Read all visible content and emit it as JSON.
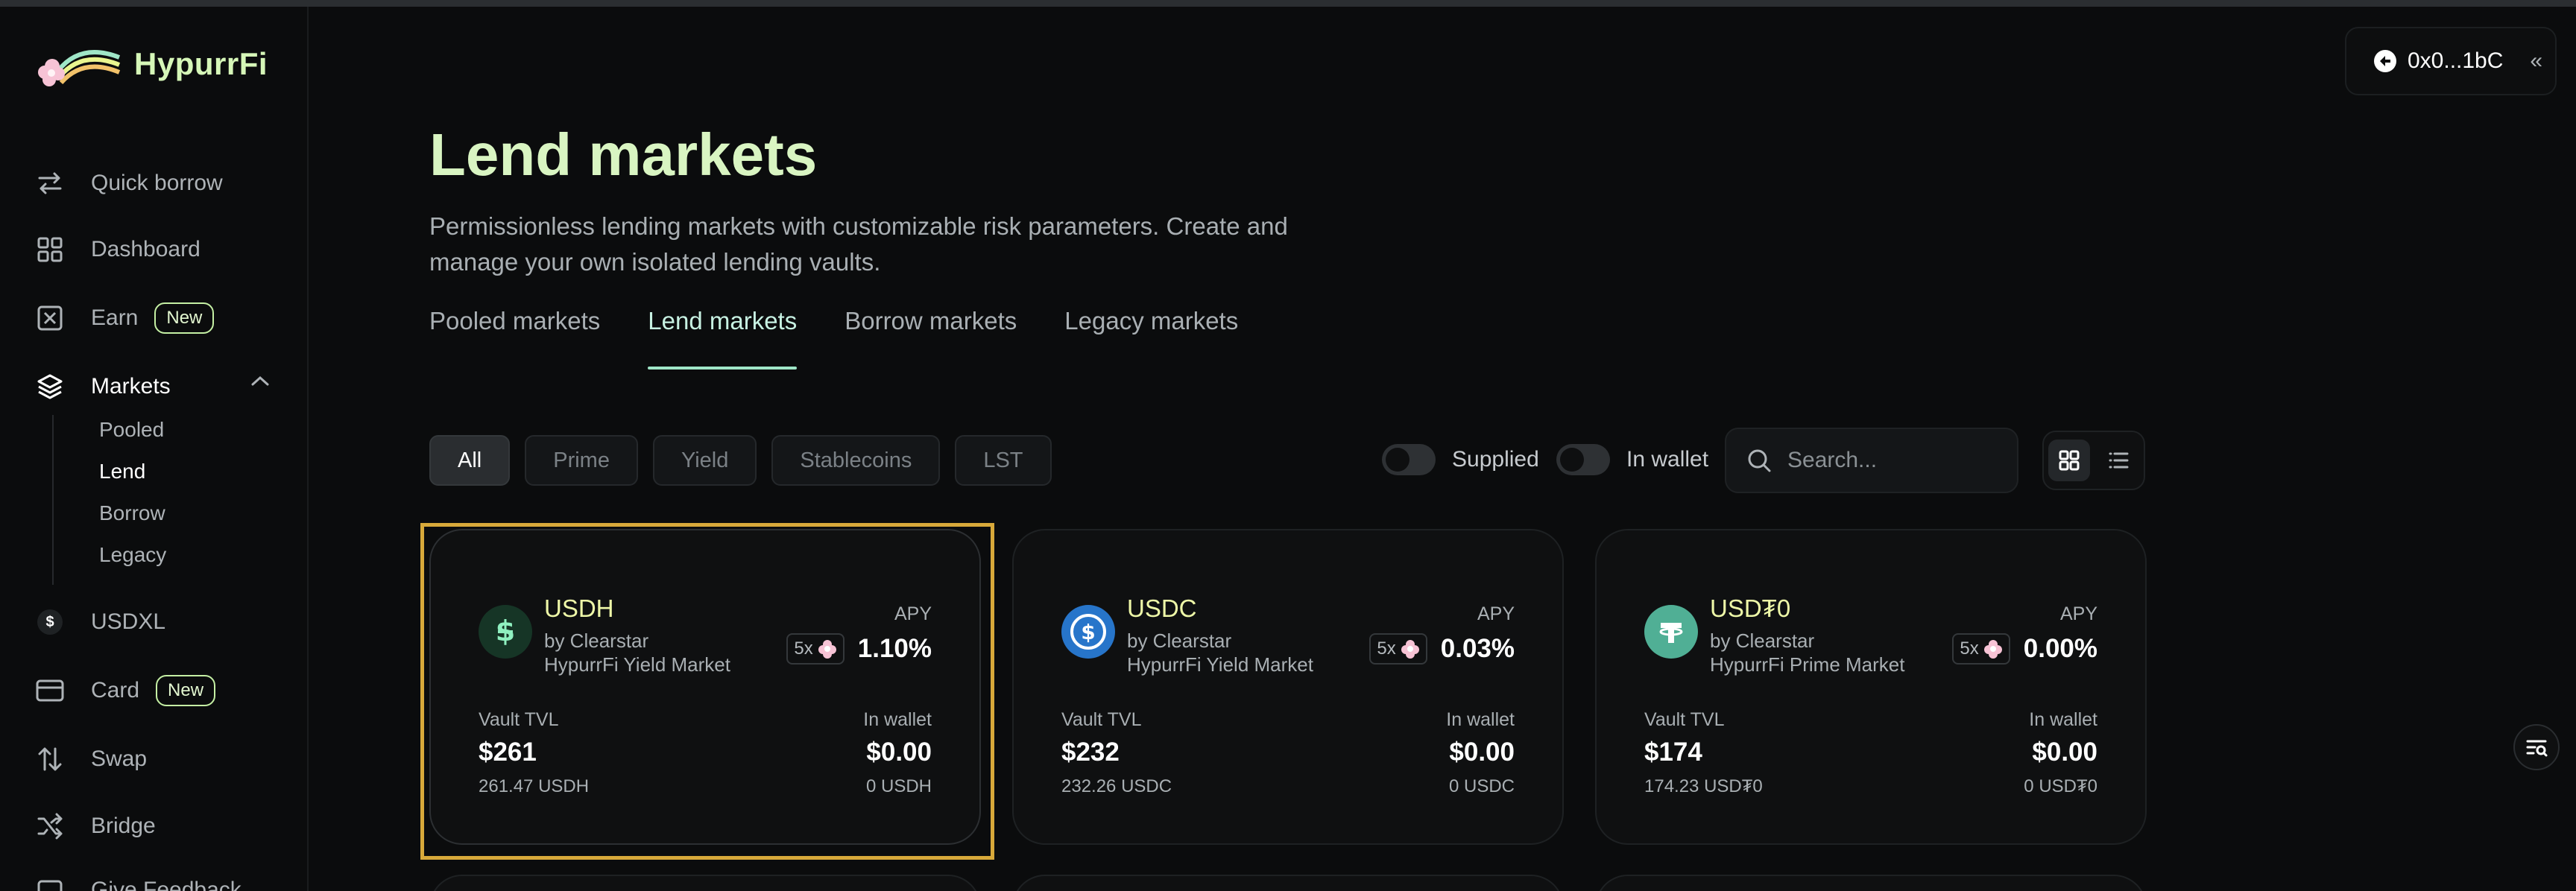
{
  "app": {
    "name": "HypurrFi"
  },
  "sidebar": {
    "items": [
      {
        "label": "Quick borrow",
        "icon": "arrows-swap-icon"
      },
      {
        "label": "Dashboard",
        "icon": "grid-icon"
      },
      {
        "label": "Earn",
        "icon": "earn-box-icon",
        "badge": "New"
      },
      {
        "label": "Markets",
        "icon": "layers-icon"
      },
      {
        "label": "USDXL",
        "icon": "dollar-coin-icon",
        "glyph": "$"
      },
      {
        "label": "Card",
        "icon": "credit-card-icon",
        "badge": "New"
      },
      {
        "label": "Swap",
        "icon": "swap-arrows-icon"
      },
      {
        "label": "Bridge",
        "icon": "bridge-shuffle-icon"
      },
      {
        "label": "Give Feedback",
        "icon": "feedback-icon"
      }
    ],
    "markets_sub": [
      "Pooled",
      "Lend",
      "Borrow",
      "Legacy"
    ]
  },
  "wallet": {
    "address": "0x0...1bC"
  },
  "page": {
    "title": "Lend markets",
    "description": "Permissionless lending markets with customizable risk parameters. Create and manage your own isolated lending vaults."
  },
  "tabs": [
    "Pooled markets",
    "Lend markets",
    "Borrow markets",
    "Legacy markets"
  ],
  "filters": [
    "All",
    "Prime",
    "Yield",
    "Stablecoins",
    "LST"
  ],
  "toggles": {
    "supplied": "Supplied",
    "in_wallet": "In wallet"
  },
  "search": {
    "placeholder": "Search..."
  },
  "cards": [
    {
      "token": "USDH",
      "by": "by Clearstar",
      "market": "HypurrFi Yield Market",
      "apy_label": "APY",
      "multiplier": "5x",
      "apy": "1.10%",
      "tvl_label": "Vault TVL",
      "tvl": "$261",
      "tvl_sub": "261.47 USDH",
      "wallet_label": "In wallet",
      "wallet": "$0.00",
      "wallet_sub": "0 USDH",
      "color": "#1d3b2c"
    },
    {
      "token": "USDC",
      "by": "by Clearstar",
      "market": "HypurrFi Yield Market",
      "apy_label": "APY",
      "multiplier": "5x",
      "apy": "0.03%",
      "tvl_label": "Vault TVL",
      "tvl": "$232",
      "tvl_sub": "232.26 USDC",
      "wallet_label": "In wallet",
      "wallet": "$0.00",
      "wallet_sub": "0 USDC",
      "color": "#2775ca"
    },
    {
      "token": "USD₮0",
      "by": "by Clearstar",
      "market": "HypurrFi Prime Market",
      "apy_label": "APY",
      "multiplier": "5x",
      "apy": "0.00%",
      "tvl_label": "Vault TVL",
      "tvl": "$174",
      "tvl_sub": "174.23 USD₮0",
      "wallet_label": "In wallet",
      "wallet": "$0.00",
      "wallet_sub": "0 USD₮0",
      "color": "#50af95"
    }
  ],
  "colors": {
    "accent": "#9fe6c7",
    "title": "#d9f5c2",
    "selection_frame": "#d8a93a"
  }
}
